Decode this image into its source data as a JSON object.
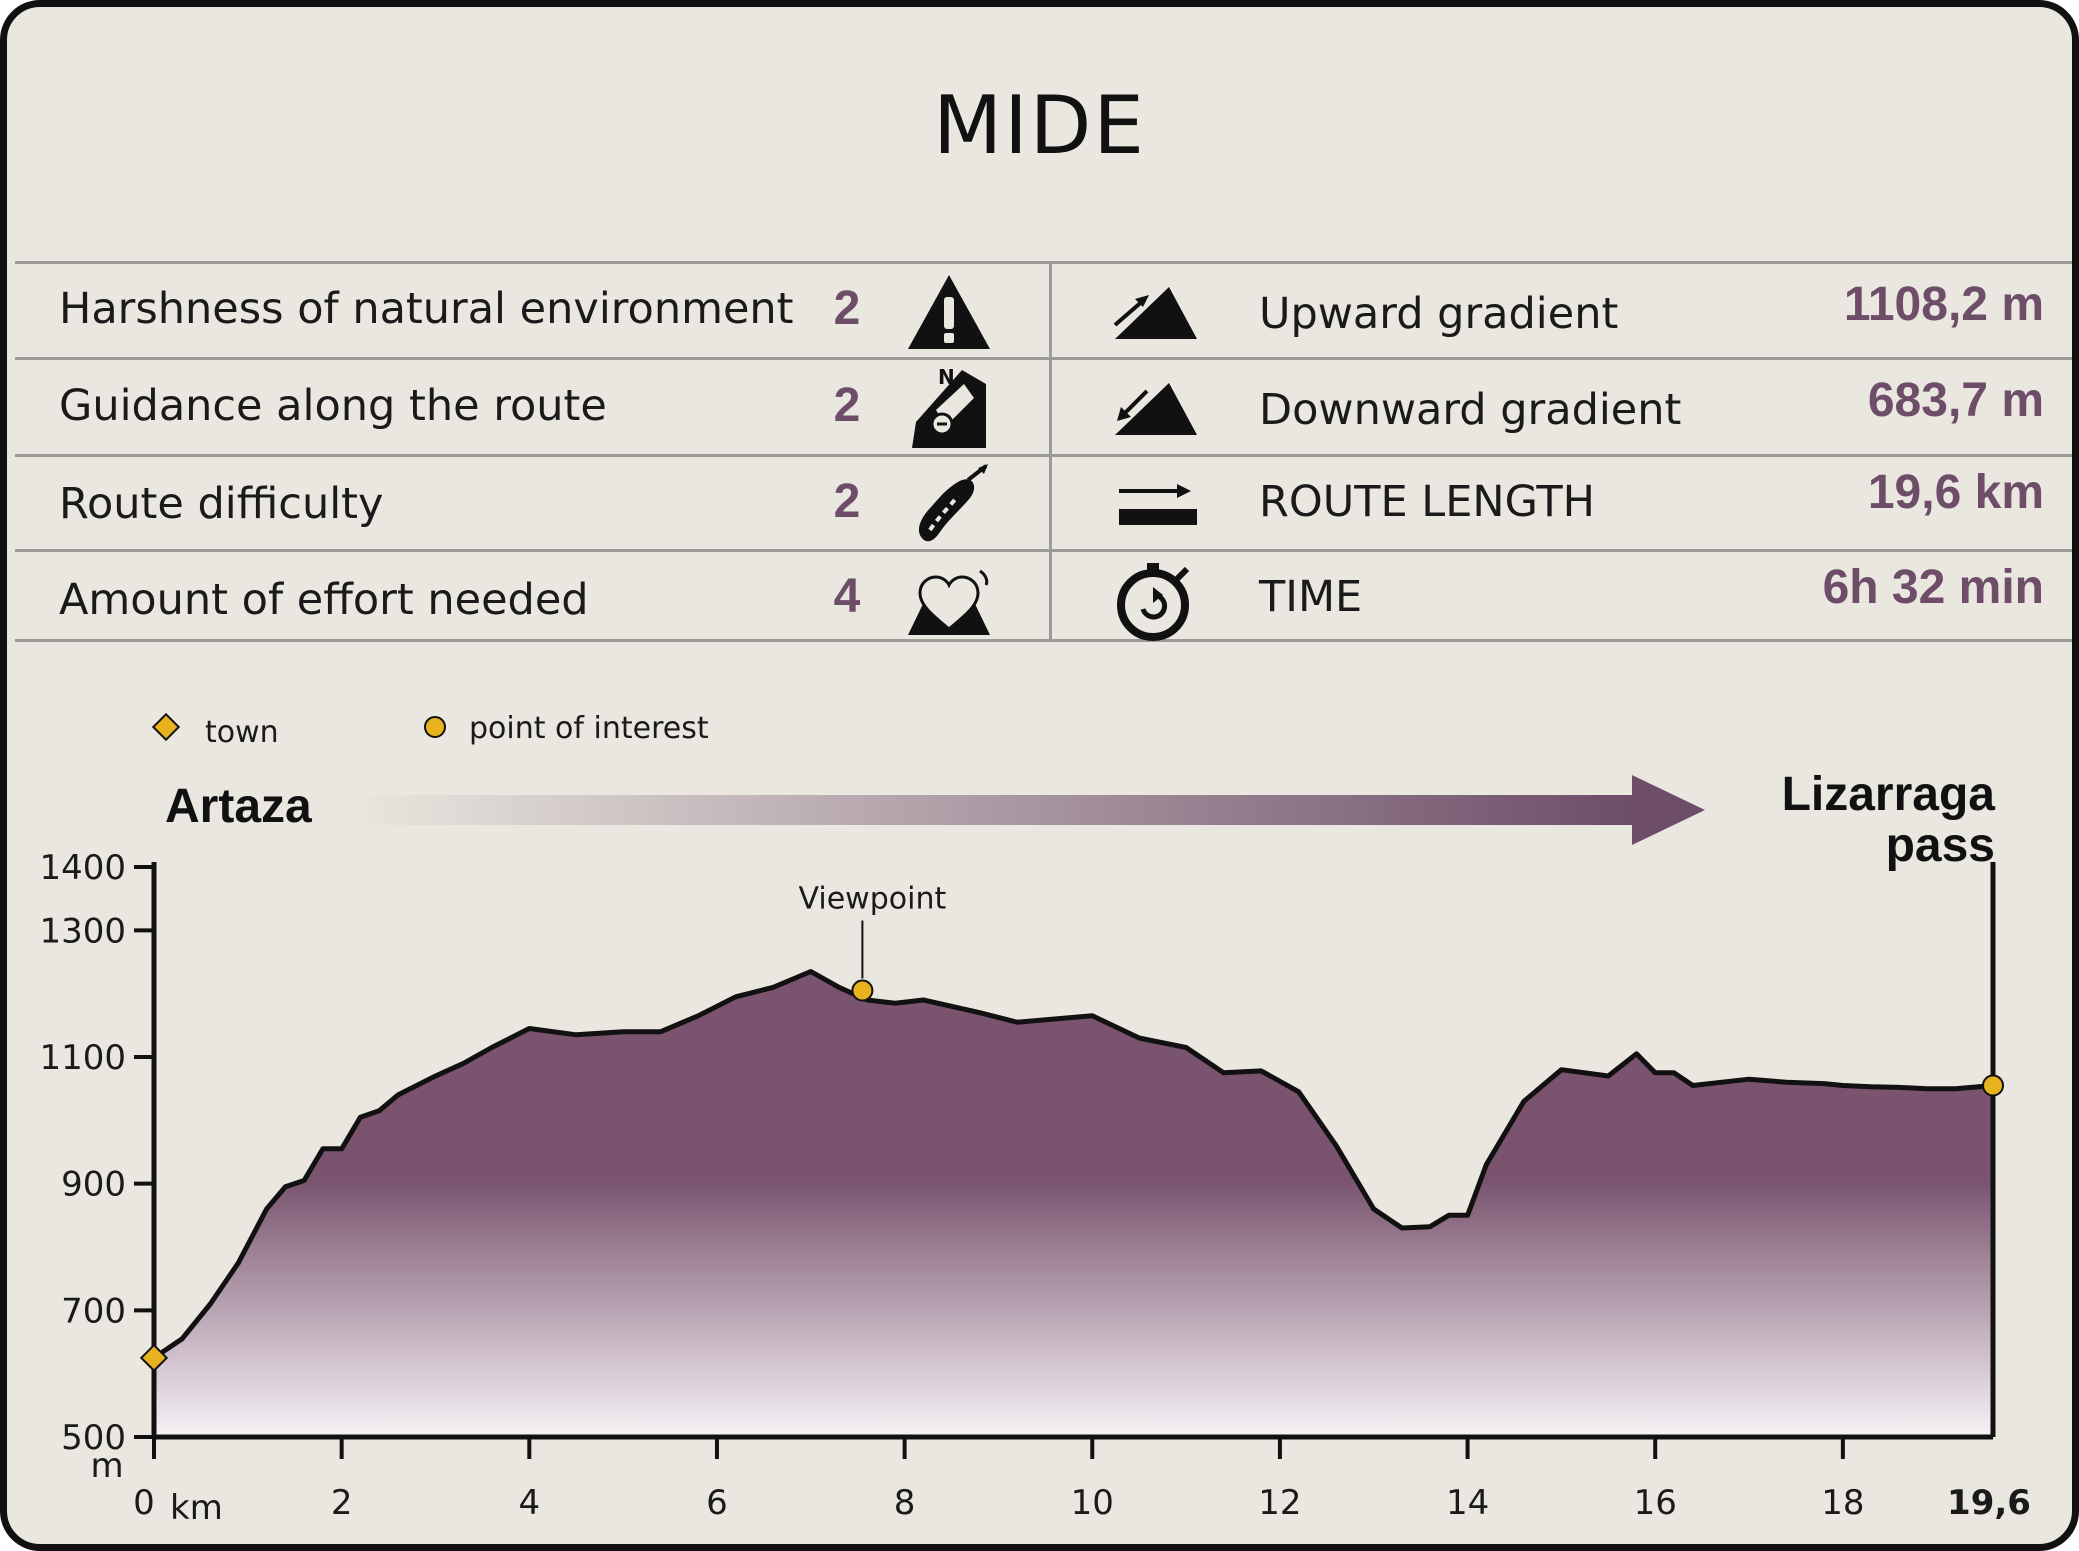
{
  "title": "MIDE",
  "mide_rows": [
    {
      "label": "Harshness of natural environment",
      "score": "2",
      "icon": "warning-triangle-icon"
    },
    {
      "label": "Guidance along the route",
      "score": "2",
      "icon": "compass-sign-icon"
    },
    {
      "label": "Route difficulty",
      "score": "2",
      "icon": "footprint-icon"
    },
    {
      "label": "Amount of effort needed",
      "score": "4",
      "icon": "heart-mountain-icon"
    }
  ],
  "stats": [
    {
      "label": "Upward gradient",
      "value": "1108,2 m",
      "icon": "ascent-icon"
    },
    {
      "label": "Downward gradient",
      "value": "683,7 m",
      "icon": "descent-icon"
    },
    {
      "label": "ROUTE LENGTH",
      "value": "19,6 km",
      "icon": "route-length-icon"
    },
    {
      "label": "TIME",
      "value": "6h 32 min",
      "icon": "stopwatch-icon"
    }
  ],
  "colors": {
    "accent": "#6d4d68",
    "fill_top": "#7a546f",
    "fill_bottom": "#f6f3f6",
    "marker": "#e8b21f",
    "background": "#e9e7df"
  },
  "chart_data": {
    "type": "area",
    "legend": [
      {
        "symbol": "diamond",
        "label": "town"
      },
      {
        "symbol": "circle",
        "label": "point of interest"
      }
    ],
    "legend_position": "top-left",
    "start_label": "Artaza",
    "end_label_lines": [
      "Lizarraga",
      "pass"
    ],
    "xlabel": "km",
    "ylabel": "m",
    "xlim": [
      0,
      19.6
    ],
    "ylim": [
      500,
      1400
    ],
    "x_ticks": [
      0,
      2,
      4,
      6,
      8,
      10,
      12,
      14,
      16,
      18
    ],
    "x_tick_labels": [
      "0",
      "2",
      "4",
      "6",
      "8",
      "10",
      "12",
      "14",
      "16",
      "18"
    ],
    "x_end_label": "19,6",
    "y_ticks": [
      500,
      700,
      900,
      1100,
      1300,
      1400
    ],
    "y_tick_labels": [
      "500",
      "700",
      "900",
      "1100",
      "1300",
      "1400"
    ],
    "grid": false,
    "series": [
      {
        "x": [
          0,
          0.3,
          0.6,
          0.9,
          1.2,
          1.4,
          1.6,
          1.8,
          2.0,
          2.2,
          2.4,
          2.6,
          2.8,
          3.0,
          3.3,
          3.6,
          4.0,
          4.5,
          5.0,
          5.4,
          5.8,
          6.2,
          6.6,
          7.0,
          7.3,
          7.6,
          7.9,
          8.2,
          8.5,
          8.8,
          9.2,
          9.6,
          10.0,
          10.5,
          11.0,
          11.4,
          11.8,
          12.2,
          12.6,
          13.0,
          13.3,
          13.6,
          13.8,
          14.0,
          14.2,
          14.4,
          14.6,
          15.0,
          15.5,
          15.8,
          16.0,
          16.2,
          16.4,
          16.7,
          17.0,
          17.4,
          17.8,
          18.0,
          18.3,
          18.6,
          18.9,
          19.2,
          19.6
        ],
        "y": [
          625,
          655,
          710,
          775,
          860,
          895,
          905,
          955,
          955,
          1005,
          1015,
          1040,
          1055,
          1070,
          1090,
          1115,
          1145,
          1135,
          1140,
          1140,
          1165,
          1195,
          1210,
          1235,
          1210,
          1190,
          1185,
          1190,
          1180,
          1170,
          1155,
          1160,
          1165,
          1130,
          1115,
          1075,
          1078,
          1045,
          960,
          860,
          830,
          832,
          850,
          850,
          930,
          980,
          1030,
          1080,
          1070,
          1105,
          1075,
          1075,
          1055,
          1060,
          1065,
          1060,
          1058,
          1055,
          1053,
          1052,
          1050,
          1050,
          1055
        ]
      }
    ],
    "annotations": [
      {
        "type": "town",
        "x": 0,
        "y": 625
      },
      {
        "type": "point of interest",
        "label": "Viewpoint",
        "x": 7.55,
        "y": 1205
      },
      {
        "type": "point of interest",
        "x": 19.6,
        "y": 1055
      }
    ]
  }
}
